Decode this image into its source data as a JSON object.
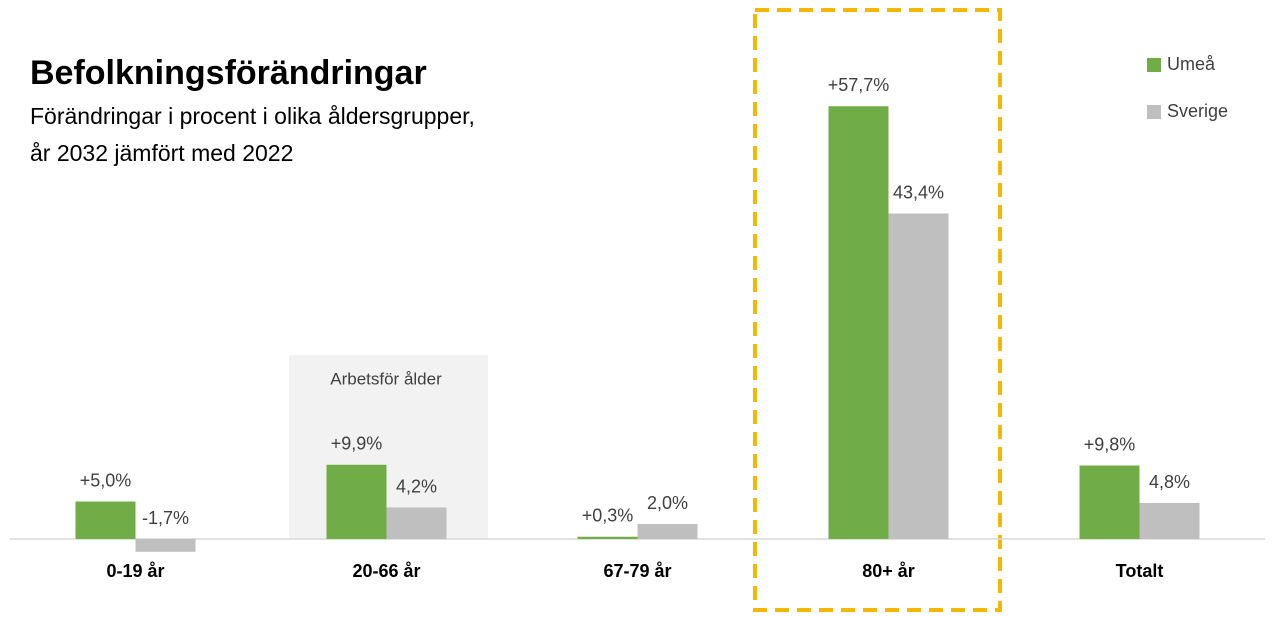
{
  "chart_data": {
    "type": "bar",
    "title": "Befolkningsförändringar",
    "subtitle": [
      "Förändringar i procent i olika åldersgrupper,",
      "år 2032 jämfört med 2022"
    ],
    "annotation": "Arbetsför ålder",
    "categories": [
      "0-19 år",
      "20-66 år",
      "67-79 år",
      "80+ år",
      "Totalt"
    ],
    "series": [
      {
        "name": "Umeå",
        "color": "#70ad47",
        "values": [
          5.0,
          9.9,
          0.3,
          57.7,
          9.8
        ],
        "value_labels": [
          "+5,0%",
          "+9,9%",
          "+0,3%",
          "+57,7%",
          "+9,8%"
        ]
      },
      {
        "name": "Sverige",
        "color": "#bfbfbf",
        "values": [
          -1.7,
          4.2,
          2.0,
          43.4,
          4.8
        ],
        "value_labels": [
          "-1,7%",
          "4,2%",
          "2,0%",
          "43,4%",
          "4,8%"
        ]
      }
    ],
    "legend": "top-right"
  }
}
